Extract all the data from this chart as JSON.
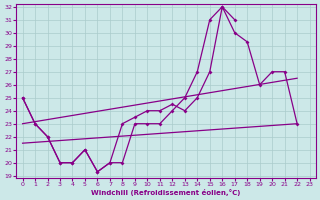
{
  "xlabel": "Windchill (Refroidissement éolien,°C)",
  "background_color": "#cce8e8",
  "grid_color": "#aacccc",
  "line_color": "#880088",
  "ylim": [
    19,
    32
  ],
  "xlim": [
    -0.5,
    23.5
  ],
  "yticks": [
    19,
    20,
    21,
    22,
    23,
    24,
    25,
    26,
    27,
    28,
    29,
    30,
    31,
    32
  ],
  "xticks": [
    0,
    1,
    2,
    3,
    4,
    5,
    6,
    7,
    8,
    9,
    10,
    11,
    12,
    13,
    14,
    15,
    16,
    17,
    18,
    19,
    20,
    21,
    22,
    23
  ],
  "line1_x": [
    0,
    1,
    2,
    3,
    4,
    5,
    6,
    7,
    8,
    9,
    10,
    11,
    12,
    13,
    14,
    15,
    16,
    17
  ],
  "line1_y": [
    25,
    23,
    22,
    20,
    20,
    21,
    19.3,
    20,
    20,
    23,
    23,
    23,
    24,
    25,
    27,
    31,
    32,
    31
  ],
  "line2_x": [
    0,
    1,
    2,
    3,
    4,
    5,
    6,
    7,
    8,
    9,
    10,
    11,
    12,
    13,
    14,
    15,
    16,
    17,
    18,
    19,
    20,
    21,
    22
  ],
  "line2_y": [
    25,
    23,
    22,
    20,
    20,
    21,
    19.3,
    20,
    23,
    23.5,
    24,
    24,
    24.5,
    24,
    25,
    27,
    32,
    30,
    29.3,
    26,
    27,
    27,
    23
  ],
  "line3_x": [
    0,
    22
  ],
  "line3_y": [
    23,
    26.5
  ],
  "line4_x": [
    0,
    22
  ],
  "line4_y": [
    21.5,
    23
  ]
}
